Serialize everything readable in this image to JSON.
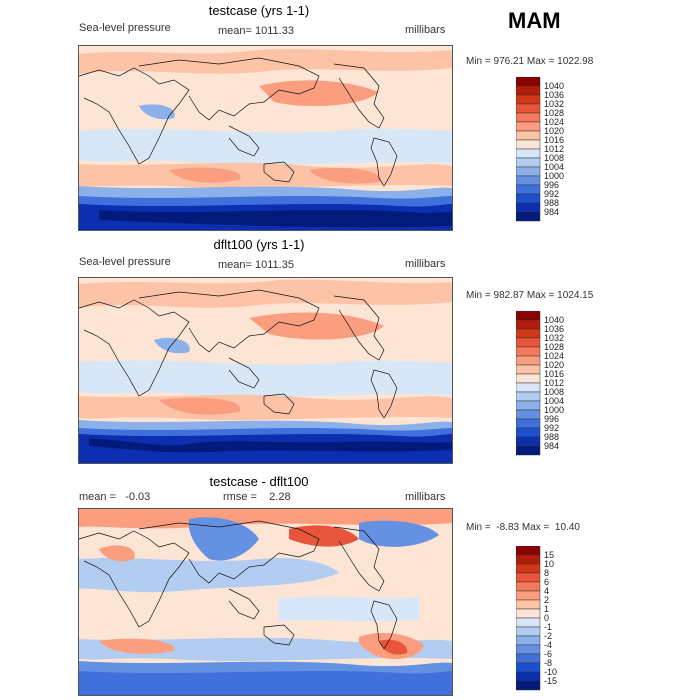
{
  "season": "MAM",
  "panels": [
    {
      "title": "testcase (yrs 1-1)",
      "left": "Sea-level pressure",
      "center": "mean= 1011.33",
      "right": "millibars",
      "minmax": "Min = 976.21 Max = 1022.98",
      "colorbar": {
        "labels": [
          "1040",
          "1036",
          "1032",
          "1028",
          "1024",
          "1020",
          "1016",
          "1012",
          "1008",
          "1004",
          "1000",
          "996",
          "992",
          "988",
          "984"
        ],
        "colors": [
          "#8b0000",
          "#b21d0a",
          "#d33718",
          "#e8553a",
          "#f47a5c",
          "#fb9e80",
          "#fdc3a6",
          "#fde5d5",
          "#d7e7f7",
          "#b2cdf1",
          "#8cb0ea",
          "#6591e3",
          "#3f70dc",
          "#1c4fd1",
          "#0b2fb0",
          "#021a7a"
        ]
      },
      "colors": {
        "deep_low": "#021a7a",
        "low2": "#0b2fb0",
        "low3": "#3f70dc",
        "low4": "#8cb0ea",
        "neutral_low": "#d7e7f7",
        "neutral_high": "#fde5d5",
        "high1": "#fdc3a6",
        "high2": "#fb9e80",
        "high3": "#f47a5c"
      }
    },
    {
      "title": "dflt100 (yrs 1-1)",
      "left": "Sea-level pressure",
      "center": "mean= 1011.35",
      "right": "millibars",
      "minmax": "Min = 982.87 Max = 1024.15",
      "colorbar": {
        "labels": [
          "1040",
          "1036",
          "1032",
          "1028",
          "1024",
          "1020",
          "1016",
          "1012",
          "1008",
          "1004",
          "1000",
          "996",
          "992",
          "988",
          "984"
        ],
        "colors": [
          "#8b0000",
          "#b21d0a",
          "#d33718",
          "#e8553a",
          "#f47a5c",
          "#fb9e80",
          "#fdc3a6",
          "#fde5d5",
          "#d7e7f7",
          "#b2cdf1",
          "#8cb0ea",
          "#6591e3",
          "#3f70dc",
          "#1c4fd1",
          "#0b2fb0",
          "#021a7a"
        ]
      },
      "colors": {
        "deep_low": "#021a7a",
        "low2": "#0b2fb0",
        "low3": "#3f70dc",
        "low4": "#8cb0ea",
        "neutral_low": "#d7e7f7",
        "neutral_high": "#fde5d5",
        "high1": "#fdc3a6",
        "high2": "#fb9e80",
        "high3": "#f47a5c"
      }
    },
    {
      "title": "testcase - dflt100",
      "left": "mean =   -0.03",
      "center": "rmse =    2.28",
      "right": "millibars",
      "minmax": "Min =  -8.83 Max =  10.40",
      "colorbar": {
        "labels": [
          "15",
          "10",
          "8",
          "6",
          "4",
          "2",
          "1",
          "0",
          "-1",
          "-2",
          "-4",
          "-6",
          "-8",
          "-10",
          "-15"
        ],
        "colors": [
          "#8b0000",
          "#b21d0a",
          "#d33718",
          "#e8553a",
          "#f47a5c",
          "#fb9e80",
          "#fdc3a6",
          "#fde5d5",
          "#d7e7f7",
          "#b2cdf1",
          "#8cb0ea",
          "#6591e3",
          "#3f70dc",
          "#1c4fd1",
          "#0b2fb0",
          "#021a7a"
        ]
      },
      "colors": {
        "deep_low": "#1c4fd1",
        "low2": "#3f70dc",
        "low3": "#6591e3",
        "low4": "#b2cdf1",
        "neutral_low": "#d7e7f7",
        "neutral_high": "#fde5d5",
        "high1": "#fdc3a6",
        "high2": "#fb9e80",
        "high3": "#e8553a"
      }
    }
  ]
}
